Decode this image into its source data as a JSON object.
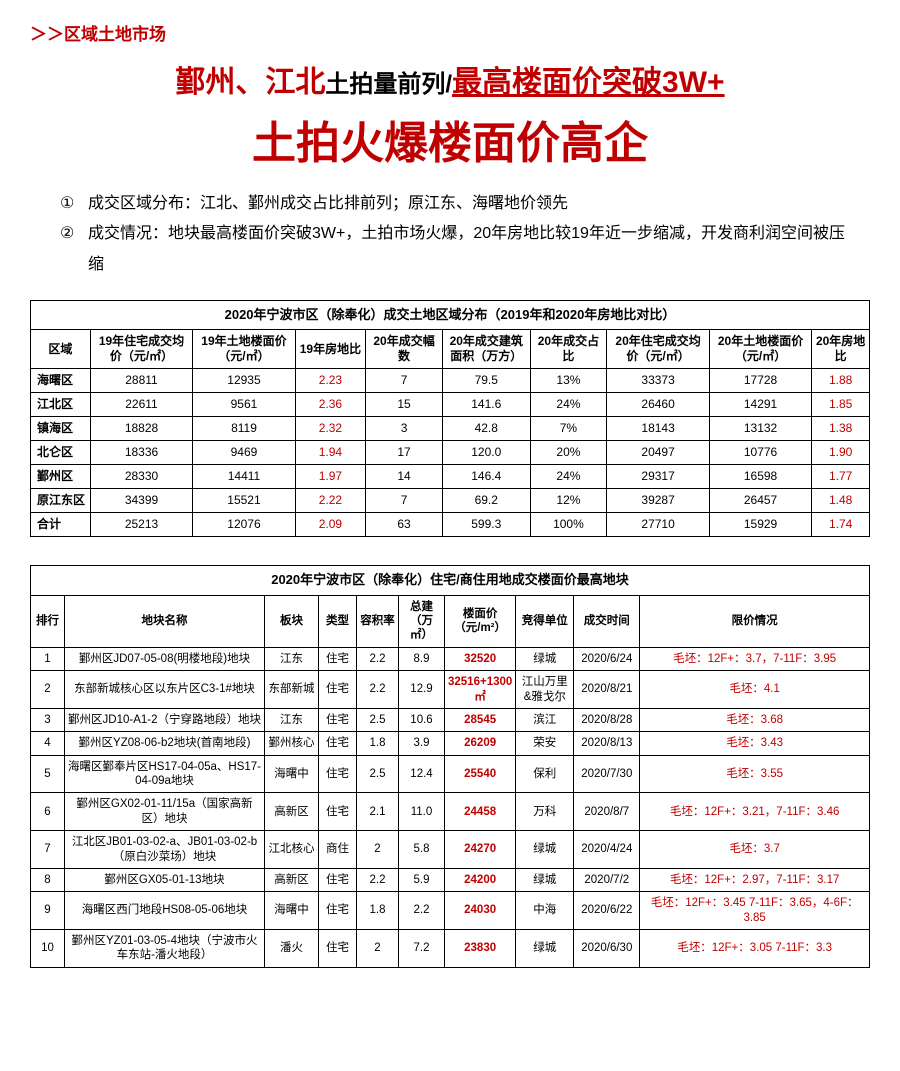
{
  "breadcrumb": "＞＞区域土地市场",
  "title": {
    "part1": "鄞州、江北",
    "part2": "土拍量前列/",
    "part3": "最高楼面价突破3W+",
    "main": "土拍火爆楼面价高企"
  },
  "bullets": {
    "b1num": "①",
    "b1": "成交区域分布：江北、鄞州成交占比排前列；原江东、海曙地价领先",
    "b2num": "②",
    "b2": "成交情况：地块最高楼面价突破3W+，土拍市场火爆，20年房地比较19年近一步缩减，开发商利润空间被压缩"
  },
  "colors": {
    "brand_red": "#c00000",
    "text_black": "#000000",
    "border": "#000000",
    "bg": "#ffffff"
  },
  "table1": {
    "caption": "2020年宁波市区（除奉化）成交土地区域分布（2019年和2020年房地比对比）",
    "headers": [
      "区域",
      "19年住宅成交均价（元/㎡）",
      "19年土地楼面价（元/㎡）",
      "19年房地比",
      "20年成交幅数",
      "20年成交建筑面积（万方）",
      "20年成交占比",
      "20年住宅成交均价（元/㎡）",
      "20年土地楼面价（元/㎡）",
      "20年房地比"
    ],
    "rows": [
      {
        "area": "海曙区",
        "c1": "28811",
        "c2": "12935",
        "c3": "2.23",
        "c4": "7",
        "c5": "79.5",
        "c6": "13%",
        "c7": "33373",
        "c8": "17728",
        "c9": "1.88"
      },
      {
        "area": "江北区",
        "c1": "22611",
        "c2": "9561",
        "c3": "2.36",
        "c4": "15",
        "c5": "141.6",
        "c6": "24%",
        "c7": "26460",
        "c8": "14291",
        "c9": "1.85"
      },
      {
        "area": "镇海区",
        "c1": "18828",
        "c2": "8119",
        "c3": "2.32",
        "c4": "3",
        "c5": "42.8",
        "c6": "7%",
        "c7": "18143",
        "c8": "13132",
        "c9": "1.38"
      },
      {
        "area": "北仑区",
        "c1": "18336",
        "c2": "9469",
        "c3": "1.94",
        "c4": "17",
        "c5": "120.0",
        "c6": "20%",
        "c7": "20497",
        "c8": "10776",
        "c9": "1.90"
      },
      {
        "area": "鄞州区",
        "c1": "28330",
        "c2": "14411",
        "c3": "1.97",
        "c4": "14",
        "c5": "146.4",
        "c6": "24%",
        "c7": "29317",
        "c8": "16598",
        "c9": "1.77"
      },
      {
        "area": "原江东区",
        "c1": "34399",
        "c2": "15521",
        "c3": "2.22",
        "c4": "7",
        "c5": "69.2",
        "c6": "12%",
        "c7": "39287",
        "c8": "26457",
        "c9": "1.48"
      },
      {
        "area": "合计",
        "c1": "25213",
        "c2": "12076",
        "c3": "2.09",
        "c4": "63",
        "c5": "599.3",
        "c6": "100%",
        "c7": "27710",
        "c8": "15929",
        "c9": "1.74"
      }
    ]
  },
  "table2": {
    "caption": "2020年宁波市区（除奉化）住宅/商住用地成交楼面价最高地块",
    "headers": [
      "排行",
      "地块名称",
      "板块",
      "类型",
      "容积率",
      "总建（万㎡）",
      "楼面价（元/m²）",
      "竞得单位",
      "成交时间",
      "限价情况"
    ],
    "rows": [
      {
        "r": "1",
        "name": "鄞州区JD07-05-08(明楼地段)地块",
        "plate": "江东",
        "type": "住宅",
        "far": "2.2",
        "area": "8.9",
        "price": "32520",
        "bidder": "绿城",
        "date": "2020/6/24",
        "limit": "毛坯：12F+：3.7，7-11F：3.95"
      },
      {
        "r": "2",
        "name": "东部新城核心区以东片区C3-1#地块",
        "plate": "东部新城",
        "type": "住宅",
        "far": "2.2",
        "area": "12.9",
        "price": "32516+1300㎡",
        "bidder": "江山万里&雅戈尔",
        "date": "2020/8/21",
        "limit": "毛坯：4.1"
      },
      {
        "r": "3",
        "name": "鄞州区JD10-A1-2（宁穿路地段）地块",
        "plate": "江东",
        "type": "住宅",
        "far": "2.5",
        "area": "10.6",
        "price": "28545",
        "bidder": "滨江",
        "date": "2020/8/28",
        "limit": "毛坯：3.68"
      },
      {
        "r": "4",
        "name": "鄞州区YZ08-06-b2地块(首南地段)",
        "plate": "鄞州核心",
        "type": "住宅",
        "far": "1.8",
        "area": "3.9",
        "price": "26209",
        "bidder": "荣安",
        "date": "2020/8/13",
        "limit": "毛坯：3.43"
      },
      {
        "r": "5",
        "name": "海曙区鄞奉片区HS17-04-05a、HS17-04-09a地块",
        "plate": "海曙中",
        "type": "住宅",
        "far": "2.5",
        "area": "12.4",
        "price": "25540",
        "bidder": "保利",
        "date": "2020/7/30",
        "limit": "毛坯：3.55"
      },
      {
        "r": "6",
        "name": "鄞州区GX02-01-11/15a（国家高新区）地块",
        "plate": "高新区",
        "type": "住宅",
        "far": "2.1",
        "area": "11.0",
        "price": "24458",
        "bidder": "万科",
        "date": "2020/8/7",
        "limit": "毛坯：12F+：3.21，7-11F：3.46"
      },
      {
        "r": "7",
        "name": "江北区JB01-03-02-a、JB01-03-02-b（原白沙菜场）地块",
        "plate": "江北核心",
        "type": "商住",
        "far": "2",
        "area": "5.8",
        "price": "24270",
        "bidder": "绿城",
        "date": "2020/4/24",
        "limit": "毛坯：3.7"
      },
      {
        "r": "8",
        "name": "鄞州区GX05-01-13地块",
        "plate": "高新区",
        "type": "住宅",
        "far": "2.2",
        "area": "5.9",
        "price": "24200",
        "bidder": "绿城",
        "date": "2020/7/2",
        "limit": "毛坯：12F+：2.97，7-11F：3.17"
      },
      {
        "r": "9",
        "name": "海曙区西门地段HS08-05-06地块",
        "plate": "海曙中",
        "type": "住宅",
        "far": "1.8",
        "area": "2.2",
        "price": "24030",
        "bidder": "中海",
        "date": "2020/6/22",
        "limit": "毛坯：12F+：3.45 7-11F：3.65，4-6F：3.85"
      },
      {
        "r": "10",
        "name": "鄞州区YZ01-03-05-4地块（宁波市火车东站-潘火地段）",
        "plate": "潘火",
        "type": "住宅",
        "far": "2",
        "area": "7.2",
        "price": "23830",
        "bidder": "绿城",
        "date": "2020/6/30",
        "limit": "毛坯：12F+：3.05 7-11F：3.3"
      }
    ]
  }
}
